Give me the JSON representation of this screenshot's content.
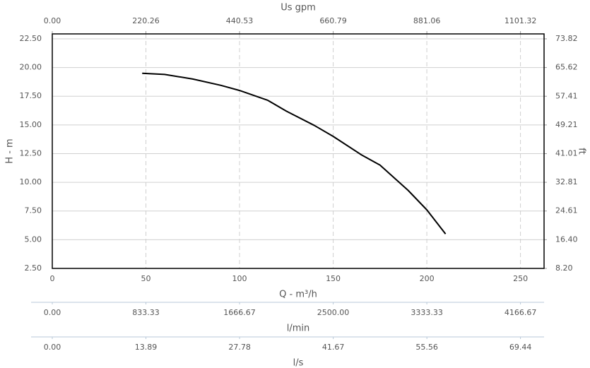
{
  "chart_data": {
    "type": "line",
    "xlabel": "Q - m³/h",
    "ylabel": "H - m",
    "x2label": "Us gpm",
    "y2label": "ft",
    "x": [
      48,
      60,
      75,
      90,
      100,
      115,
      125,
      140,
      150,
      165,
      175,
      190,
      200,
      210
    ],
    "series": [
      {
        "name": "H",
        "color": "#000000",
        "values": [
          19.5,
          19.4,
          19.0,
          18.45,
          18.0,
          17.15,
          16.2,
          14.95,
          14.0,
          12.4,
          11.5,
          9.3,
          7.6,
          5.5
        ]
      }
    ],
    "xlim": [
      0,
      262.6
    ],
    "xticks": [
      0,
      50,
      100,
      150,
      200,
      250
    ],
    "ylim": [
      2.5,
      22.93
    ],
    "yticks": [
      {
        "value": 2.5,
        "label": "2.50"
      },
      {
        "value": 5,
        "label": "5.00"
      },
      {
        "value": 7.5,
        "label": "7.50"
      },
      {
        "value": 10,
        "label": "10.00"
      },
      {
        "value": 12.5,
        "label": "12.50"
      },
      {
        "value": 15,
        "label": "15.00"
      },
      {
        "value": 17.5,
        "label": "17.50"
      },
      {
        "value": 20,
        "label": "20.00"
      },
      {
        "value": 22.5,
        "label": "22.50"
      }
    ],
    "x2lim": [
      0,
      1156.8
    ],
    "x2ticks": [
      {
        "value": 0,
        "label": "0.00"
      },
      220.26,
      440.53,
      660.79,
      881.06,
      1101.32
    ],
    "y2lim": [
      8.2,
      75.23
    ],
    "y2ticks": [
      {
        "value": 8.2,
        "label": "8.20"
      },
      {
        "value": 16.4,
        "label": "16.40"
      },
      24.61,
      32.81,
      41.01,
      49.21,
      57.41,
      65.62,
      73.82
    ],
    "extra_axes": [
      {
        "label": "l/min",
        "lim": [
          0,
          4376.7
        ],
        "ticks": [
          {
            "value": 0,
            "label": "0.00"
          },
          833.33,
          1666.67,
          {
            "value": 2500,
            "label": "2500.00"
          },
          3333.33,
          4166.67
        ]
      },
      {
        "label": "l/s",
        "lim": [
          0,
          72.94
        ],
        "ticks": [
          {
            "value": 0,
            "label": "0.00"
          },
          13.89,
          27.78,
          41.67,
          55.56,
          69.44
        ]
      }
    ],
    "grid": true
  }
}
